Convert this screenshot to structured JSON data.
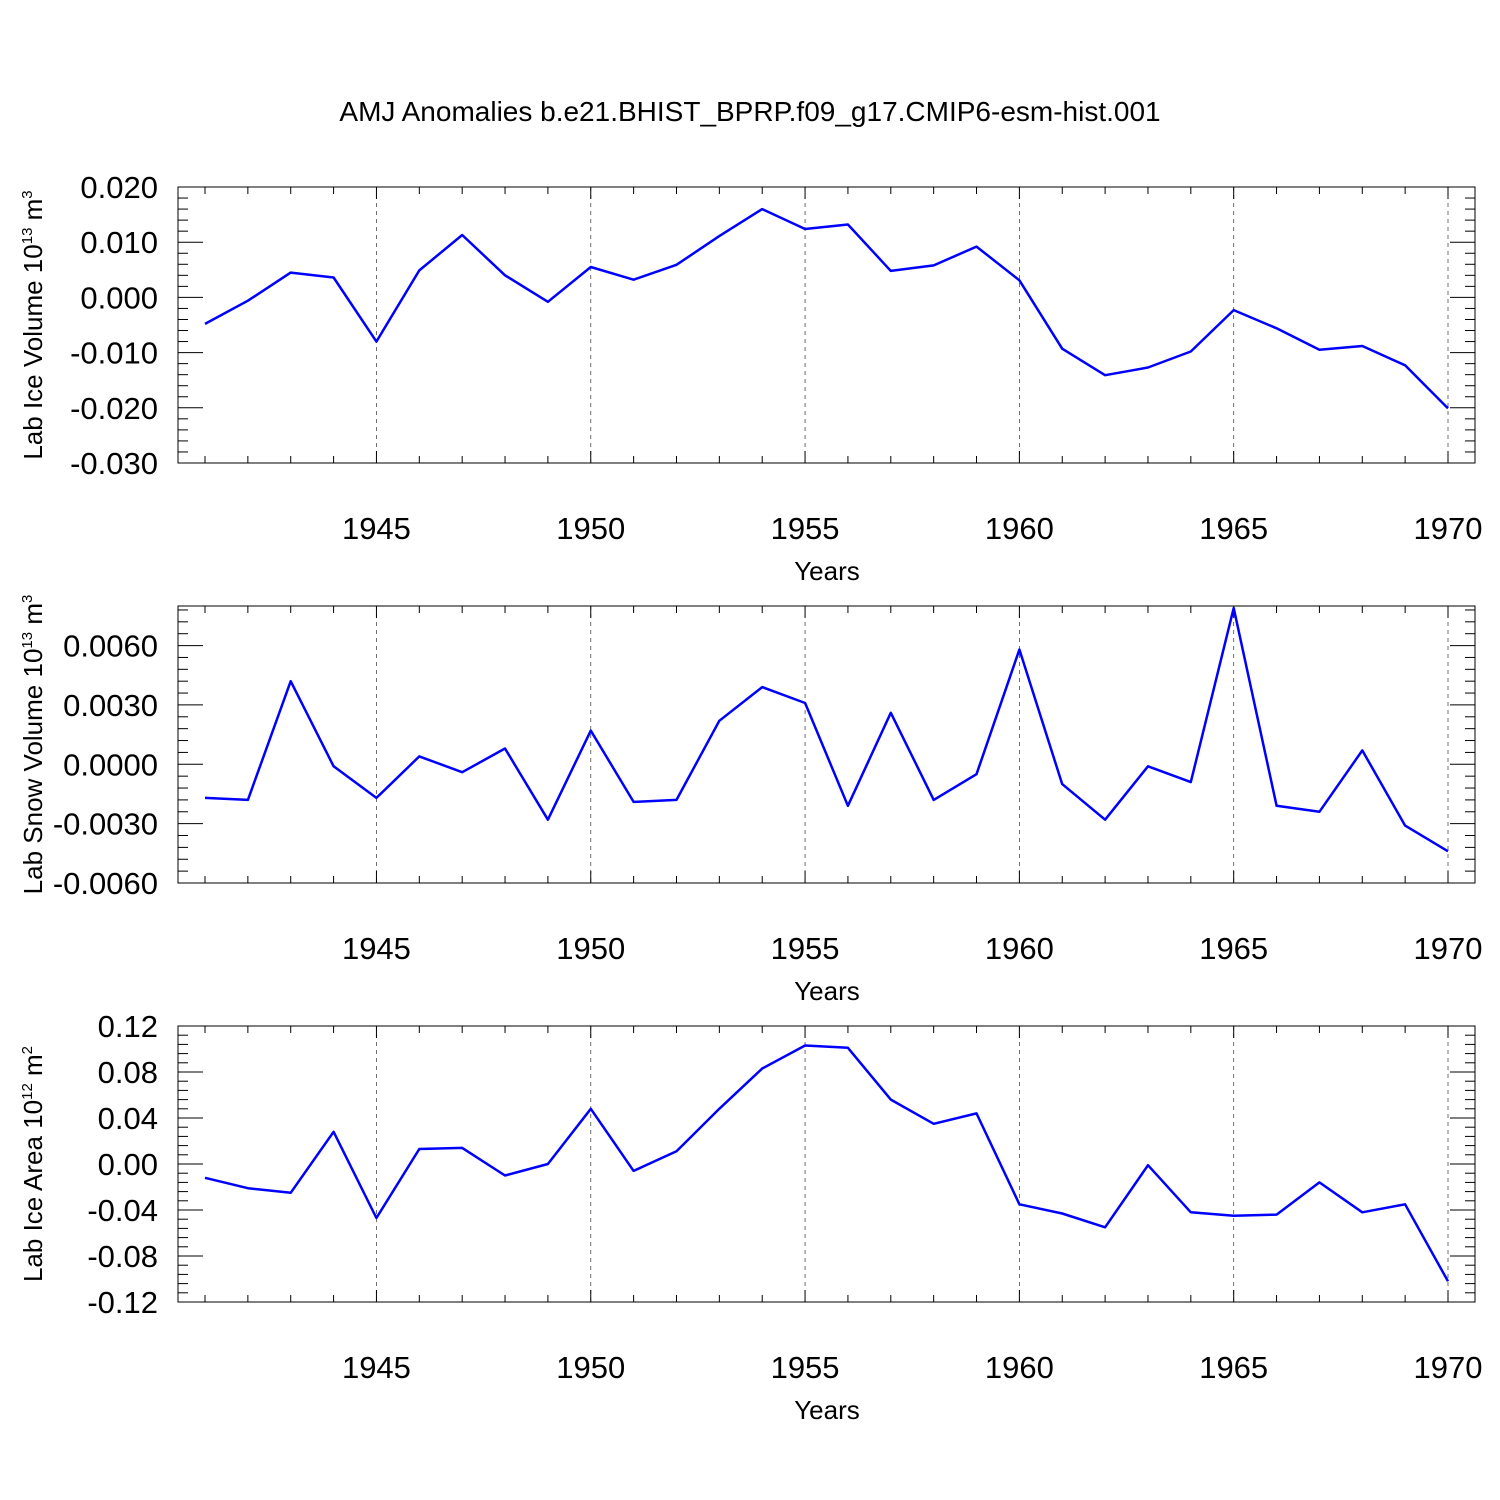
{
  "title": "AMJ Anomalies b.e21.BHIST_BPRP.f09_g17.CMIP6-esm-hist.001",
  "colors": {
    "line": "#0000ff",
    "axis": "#000000",
    "grid": "#000000"
  },
  "chart_data": [
    {
      "type": "line",
      "ylabel": "Lab Ice Volume 10",
      "ylabel_sup": "13",
      "ylabel_unit": " m",
      "ylabel_unit_sup": "3",
      "xlabel": "Years",
      "xlim": [
        1941,
        1970
      ],
      "ylim": [
        -0.03,
        0.02
      ],
      "yticks": [
        -0.03,
        -0.02,
        -0.01,
        0.0,
        0.01,
        0.02
      ],
      "ytick_labels": [
        "-0.030",
        "-0.020",
        "-0.010",
        "0.000",
        "0.010",
        "0.020"
      ],
      "xticks": [
        1945,
        1950,
        1955,
        1960,
        1965,
        1970
      ],
      "xtick_labels": [
        "1945",
        "1950",
        "1955",
        "1960",
        "1965",
        "1970"
      ],
      "x": [
        1941,
        1942,
        1943,
        1944,
        1945,
        1946,
        1947,
        1948,
        1949,
        1950,
        1951,
        1952,
        1953,
        1954,
        1955,
        1956,
        1957,
        1958,
        1959,
        1960,
        1961,
        1962,
        1963,
        1964,
        1965,
        1966,
        1967,
        1968,
        1969,
        1970
      ],
      "values": [
        -0.0048,
        -0.0006,
        0.0045,
        0.0036,
        -0.008,
        0.0049,
        0.0113,
        0.004,
        -0.0008,
        0.0055,
        0.0032,
        0.0059,
        0.0111,
        0.016,
        0.0124,
        0.0132,
        0.0048,
        0.0058,
        0.0092,
        0.0031,
        -0.0093,
        -0.0141,
        -0.0127,
        -0.0098,
        -0.0023,
        -0.0056,
        -0.0095,
        -0.0088,
        -0.0123,
        -0.0201
      ]
    },
    {
      "type": "line",
      "ylabel": "Lab Snow Volume 10",
      "ylabel_sup": "13",
      "ylabel_unit": " m",
      "ylabel_unit_sup": "3",
      "xlabel": "Years",
      "xlim": [
        1941,
        1970
      ],
      "ylim": [
        -0.006,
        0.008
      ],
      "yticks": [
        -0.006,
        -0.003,
        0.0,
        0.003,
        0.006
      ],
      "ytick_labels": [
        "-0.0060",
        "-0.0030",
        "0.0000",
        "0.0030",
        "0.0060"
      ],
      "xticks": [
        1945,
        1950,
        1955,
        1960,
        1965,
        1970
      ],
      "xtick_labels": [
        "1945",
        "1950",
        "1955",
        "1960",
        "1965",
        "1970"
      ],
      "x": [
        1941,
        1942,
        1943,
        1944,
        1945,
        1946,
        1947,
        1948,
        1949,
        1950,
        1951,
        1952,
        1953,
        1954,
        1955,
        1956,
        1957,
        1958,
        1959,
        1960,
        1961,
        1962,
        1963,
        1964,
        1965,
        1966,
        1967,
        1968,
        1969,
        1970
      ],
      "values": [
        -0.0017,
        -0.0018,
        0.0042,
        -0.0001,
        -0.0017,
        0.0004,
        -0.0004,
        0.0008,
        -0.0028,
        0.0017,
        -0.0019,
        -0.0018,
        0.0022,
        0.0039,
        0.0031,
        -0.0021,
        0.0026,
        -0.0018,
        -0.0005,
        0.0058,
        -0.001,
        -0.0028,
        -0.0001,
        -0.0009,
        0.0079,
        -0.0021,
        -0.0024,
        0.0007,
        -0.0031,
        -0.0044
      ]
    },
    {
      "type": "line",
      "ylabel": "Lab Ice Area 10",
      "ylabel_sup": "12",
      "ylabel_unit": " m",
      "ylabel_unit_sup": "2",
      "xlabel": "Years",
      "xlim": [
        1941,
        1970
      ],
      "ylim": [
        -0.12,
        0.12
      ],
      "yticks": [
        -0.12,
        -0.08,
        -0.04,
        0.0,
        0.04,
        0.08,
        0.12
      ],
      "ytick_labels": [
        "-0.12",
        "-0.08",
        "-0.04",
        "0.00",
        "0.04",
        "0.08",
        "0.12"
      ],
      "xticks": [
        1945,
        1950,
        1955,
        1960,
        1965,
        1970
      ],
      "xtick_labels": [
        "1945",
        "1950",
        "1955",
        "1960",
        "1965",
        "1970"
      ],
      "x": [
        1941,
        1942,
        1943,
        1944,
        1945,
        1946,
        1947,
        1948,
        1949,
        1950,
        1951,
        1952,
        1953,
        1954,
        1955,
        1956,
        1957,
        1958,
        1959,
        1960,
        1961,
        1962,
        1963,
        1964,
        1965,
        1966,
        1967,
        1968,
        1969,
        1970
      ],
      "values": [
        -0.012,
        -0.021,
        -0.025,
        0.028,
        -0.047,
        0.013,
        0.014,
        -0.01,
        0.0,
        0.048,
        -0.006,
        0.011,
        0.048,
        0.083,
        0.103,
        0.101,
        0.056,
        0.035,
        0.044,
        -0.035,
        -0.043,
        -0.055,
        -0.001,
        -0.042,
        -0.045,
        -0.044,
        -0.016,
        -0.042,
        -0.035,
        -0.102
      ]
    }
  ]
}
